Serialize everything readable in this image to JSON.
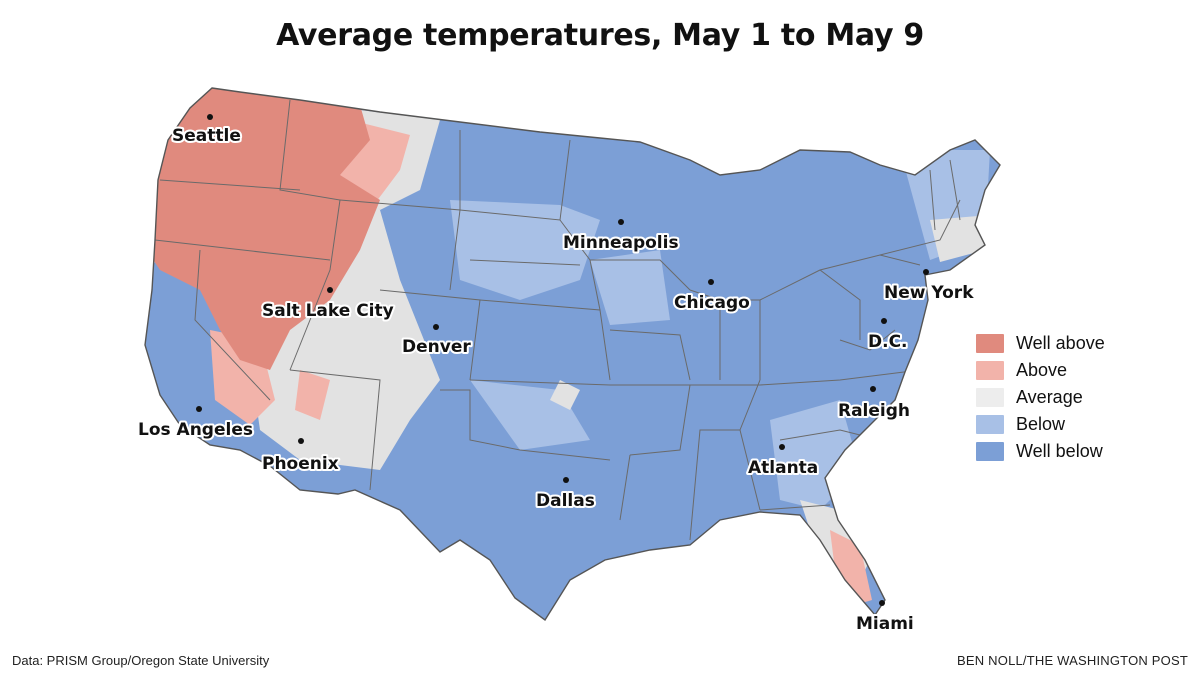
{
  "title": "Average temperatures, May 1 to May 9",
  "legend": {
    "items": [
      {
        "label": "Well above",
        "color": "#e08a7e"
      },
      {
        "label": "Above",
        "color": "#f2b3aa"
      },
      {
        "label": "Average",
        "color": "#ededed"
      },
      {
        "label": "Below",
        "color": "#a8c0e6"
      },
      {
        "label": "Well below",
        "color": "#7c9fd6"
      }
    ]
  },
  "cities": [
    {
      "name": "Seattle"
    },
    {
      "name": "Minneapolis"
    },
    {
      "name": "Chicago"
    },
    {
      "name": "New York"
    },
    {
      "name": "Salt Lake City"
    },
    {
      "name": "Denver"
    },
    {
      "name": "D.C."
    },
    {
      "name": "Raleigh"
    },
    {
      "name": "Los Angeles"
    },
    {
      "name": "Phoenix"
    },
    {
      "name": "Atlanta"
    },
    {
      "name": "Dallas"
    },
    {
      "name": "Miami"
    }
  ],
  "footer": {
    "source": "Data: PRISM Group/Oregon State University",
    "credit": "BEN NOLL/THE WASHINGTON POST"
  }
}
